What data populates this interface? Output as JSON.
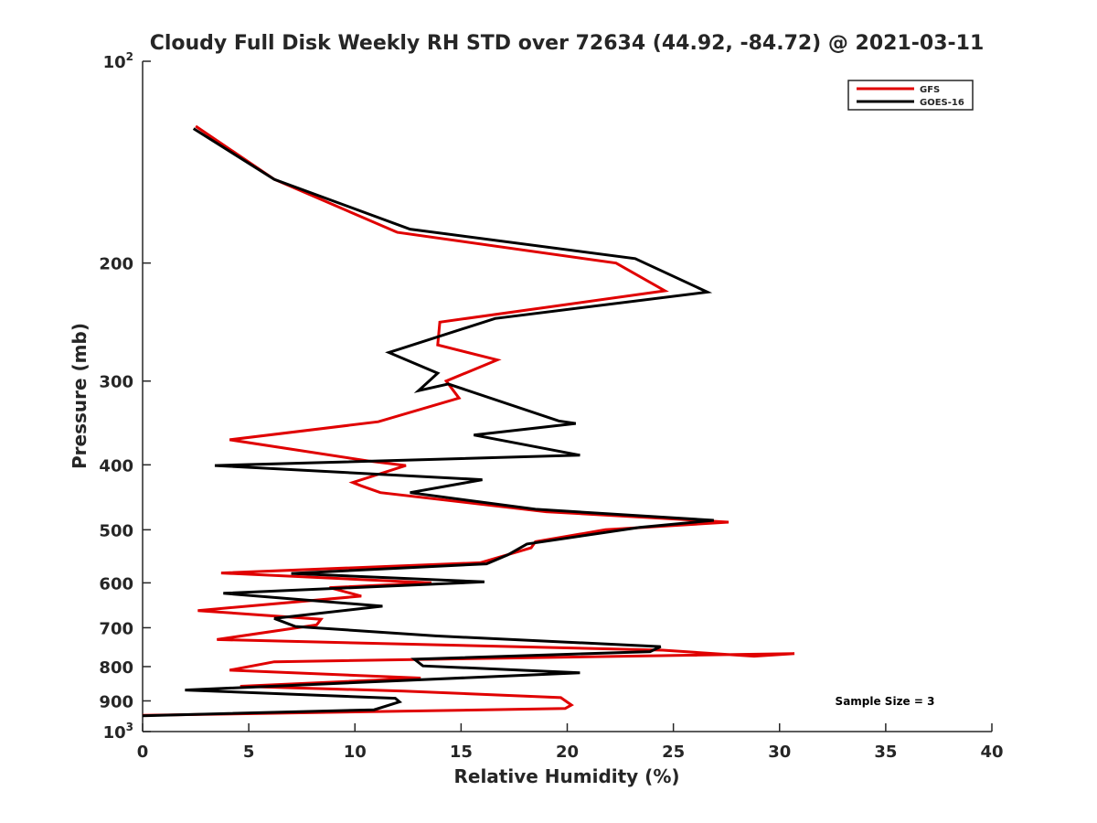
{
  "chart_data": {
    "type": "line",
    "title": "Cloudy Full Disk Weekly RH STD over 72634 (44.92, -84.72) @ 2021-03-11",
    "xlabel": "Relative Humidity (%)",
    "ylabel": "Pressure (mb)",
    "xlim": [
      0,
      40
    ],
    "ylim": [
      100,
      1000
    ],
    "yscale": "log",
    "y_reversed": true,
    "x_ticks": [
      "0",
      "5",
      "10",
      "15",
      "20",
      "25",
      "30",
      "35",
      "40"
    ],
    "y_ticks": [
      {
        "value": 100,
        "base": "10",
        "exp": "2"
      },
      {
        "value": 200,
        "label": "200"
      },
      {
        "value": 300,
        "label": "300"
      },
      {
        "value": 400,
        "label": "400"
      },
      {
        "value": 500,
        "label": "500"
      },
      {
        "value": 600,
        "label": "600"
      },
      {
        "value": 700,
        "label": "700"
      },
      {
        "value": 800,
        "label": "800"
      },
      {
        "value": 900,
        "label": "900"
      },
      {
        "value": 1000,
        "base": "10",
        "exp": "3"
      }
    ],
    "grid": false,
    "legend_position": "top-right",
    "annotation": "Sample Size = 3",
    "series": [
      {
        "name": "GFS",
        "color": "#e00000",
        "points": [
          [
            2.5,
            125
          ],
          [
            6.2,
            150
          ],
          [
            12.0,
            180
          ],
          [
            22.3,
            200
          ],
          [
            24.6,
            220
          ],
          [
            14.0,
            245
          ],
          [
            13.9,
            265
          ],
          [
            16.7,
            279
          ],
          [
            14.3,
            300
          ],
          [
            14.9,
            318
          ],
          [
            11.1,
            345
          ],
          [
            4.1,
            367
          ],
          [
            10.7,
            395
          ],
          [
            12.4,
            401
          ],
          [
            9.9,
            425
          ],
          [
            10.3,
            430
          ],
          [
            11.2,
            440
          ],
          [
            19.0,
            470
          ],
          [
            27.6,
            487
          ],
          [
            21.8,
            500
          ],
          [
            18.5,
            521
          ],
          [
            18.3,
            532
          ],
          [
            15.9,
            560
          ],
          [
            3.7,
            580
          ],
          [
            13.6,
            600
          ],
          [
            8.8,
            610
          ],
          [
            10.3,
            628
          ],
          [
            2.6,
            660
          ],
          [
            8.4,
            680
          ],
          [
            8.2,
            693
          ],
          [
            3.5,
            729
          ],
          [
            24.5,
            756
          ],
          [
            28.8,
            772
          ],
          [
            30.7,
            765
          ],
          [
            6.2,
            787
          ],
          [
            4.1,
            810
          ],
          [
            13.1,
            832
          ],
          [
            4.6,
            856
          ],
          [
            12.3,
            870
          ],
          [
            19.7,
            890
          ],
          [
            20.2,
            913
          ],
          [
            19.9,
            924
          ],
          [
            0.0,
            946
          ]
        ]
      },
      {
        "name": "GOES-16",
        "color": "#000000",
        "points": [
          [
            2.4,
            126
          ],
          [
            6.2,
            150
          ],
          [
            12.6,
            178
          ],
          [
            23.2,
            197
          ],
          [
            26.6,
            221
          ],
          [
            16.6,
            242
          ],
          [
            11.6,
            272
          ],
          [
            13.9,
            292
          ],
          [
            13.0,
            310
          ],
          [
            14.4,
            303
          ],
          [
            19.6,
            344
          ],
          [
            20.4,
            347
          ],
          [
            15.6,
            361
          ],
          [
            20.6,
            387
          ],
          [
            3.4,
            401
          ],
          [
            16.0,
            421
          ],
          [
            12.6,
            440
          ],
          [
            18.5,
            466
          ],
          [
            26.9,
            484
          ],
          [
            23.4,
            496
          ],
          [
            18.1,
            525
          ],
          [
            17.2,
            545
          ],
          [
            16.2,
            562
          ],
          [
            7.0,
            581
          ],
          [
            16.1,
            598
          ],
          [
            3.8,
            622
          ],
          [
            11.3,
            650
          ],
          [
            6.2,
            678
          ],
          [
            7.2,
            697
          ],
          [
            13.8,
            720
          ],
          [
            24.4,
            747
          ],
          [
            23.9,
            760
          ],
          [
            12.8,
            780
          ],
          [
            13.2,
            798
          ],
          [
            20.6,
            817
          ],
          [
            2.0,
            867
          ],
          [
            11.9,
            892
          ],
          [
            12.1,
            903
          ],
          [
            10.9,
            928
          ],
          [
            0.0,
            947
          ]
        ]
      }
    ]
  }
}
